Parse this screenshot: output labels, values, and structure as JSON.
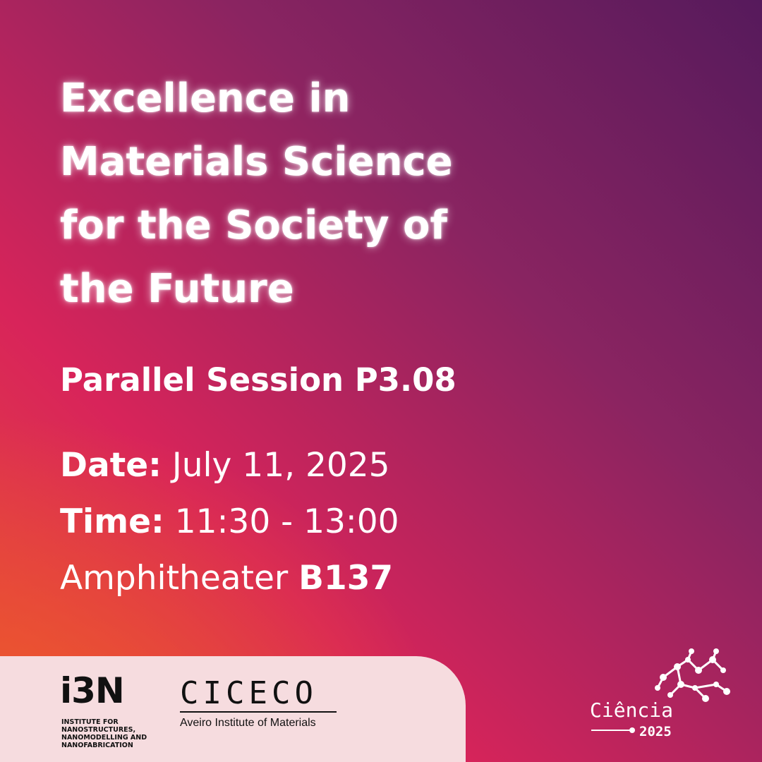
{
  "title": {
    "lines": [
      "Excellence in",
      "Materials Science",
      "for the Society of",
      "the Future"
    ]
  },
  "session": "Parallel Session P3.08",
  "date": {
    "label": "Date:",
    "value": "July 11, 2025"
  },
  "time": {
    "label": "Time:",
    "value": "11:30 - 13:00"
  },
  "location": {
    "text": "Amphitheater",
    "room": "B137"
  },
  "logos": {
    "i3n": {
      "name": "i3N",
      "subtitle": [
        "INSTITUTE FOR",
        "NANOSTRUCTURES,",
        "NANOMODELLING AND",
        "NANOFABRICATION"
      ]
    },
    "ciceco": {
      "name": "CICECO",
      "subtitle": "Aveiro Institute of Materials"
    },
    "ciencia": {
      "name": "Ciência",
      "year": "2025"
    }
  }
}
